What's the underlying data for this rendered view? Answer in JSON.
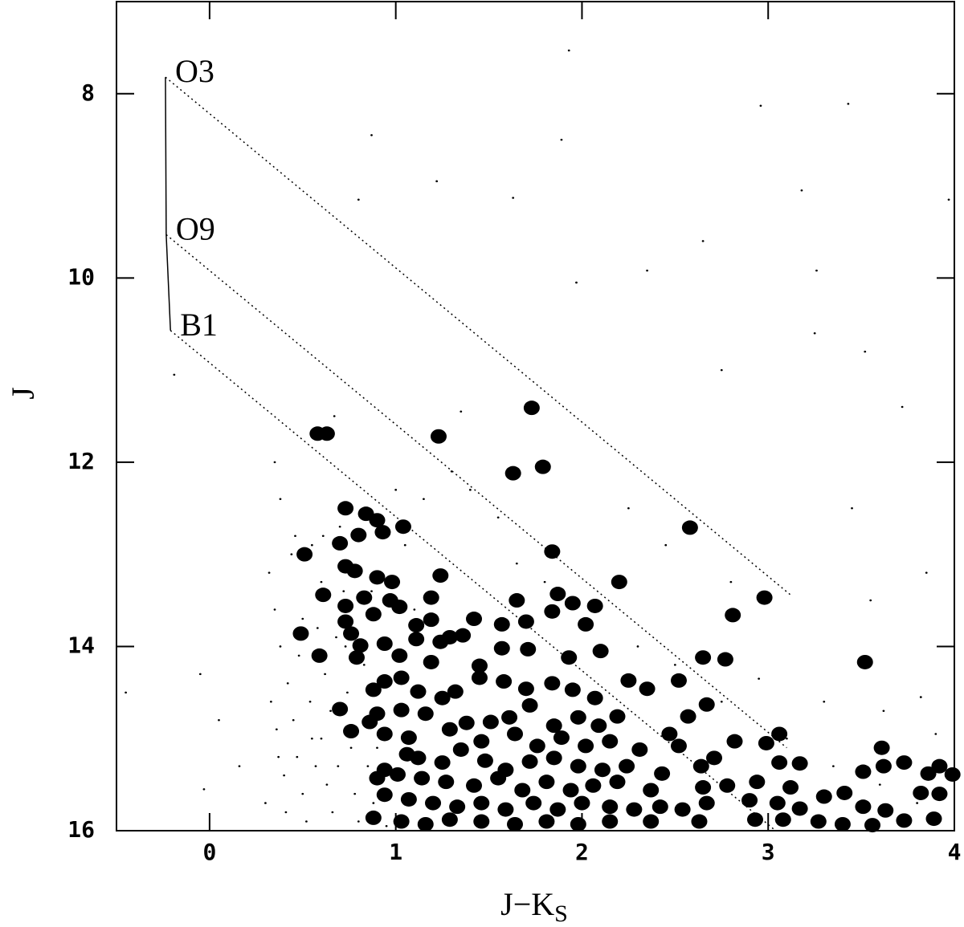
{
  "chart_data": {
    "type": "scatter",
    "xlabel": {
      "text": "J−K",
      "sub": "S"
    },
    "ylabel": "J",
    "xlim": [
      -0.5,
      4
    ],
    "ylim": [
      16,
      7
    ],
    "xticks": [
      0,
      1,
      2,
      3,
      4
    ],
    "yticks": [
      8,
      10,
      12,
      14,
      16
    ],
    "grid": false,
    "main_sequence": {
      "color": "#000000",
      "x": [
        -0.237,
        -0.233,
        -0.21
      ],
      "y": [
        7.82,
        9.53,
        10.57
      ]
    },
    "annotations": [
      {
        "text": "O3",
        "x": [
          -0.237,
          3.12
        ],
        "y": [
          7.82,
          13.44
        ]
      },
      {
        "text": "O9",
        "x": [
          -0.233,
          3.1
        ],
        "y": [
          9.53,
          15.1
        ]
      },
      {
        "text": "B1",
        "x": [
          -0.21,
          3.04
        ],
        "y": [
          10.57,
          16
        ]
      }
    ],
    "series": [
      {
        "color": "#000000",
        "marker": "dot-large",
        "marker_size": 10,
        "x": [
          0.58,
          0.63,
          1.23,
          1.73,
          1.79,
          1.63,
          2.58,
          2.98,
          3.52,
          2.81,
          0.73,
          0.84,
          0.9,
          0.93,
          1.04,
          0.8,
          0.7,
          0.51,
          1.84,
          2.2,
          0.49,
          0.59,
          0.61,
          0.73,
          0.78,
          0.9,
          0.98,
          1.24,
          1.19,
          0.83,
          0.73,
          0.97,
          1.02,
          0.88,
          0.73,
          1.42,
          1.65,
          1.7,
          1.57,
          1.87,
          1.95,
          2.07,
          1.84,
          2.02,
          1.11,
          1.19,
          1.11,
          1.24,
          1.29,
          1.36,
          0.76,
          0.81,
          0.79,
          0.94,
          1.02,
          1.19,
          1.45,
          1.57,
          1.71,
          1.93,
          2.1,
          2.25,
          2.35,
          2.52,
          2.65,
          2.77,
          2.67,
          2.57,
          2.47,
          2.19,
          0.7,
          0.76,
          0.88,
          0.94,
          1.03,
          1.12,
          1.25,
          1.32,
          1.45,
          1.58,
          1.7,
          1.84,
          1.95,
          2.07,
          0.9,
          0.86,
          1.03,
          1.16,
          1.38,
          1.51,
          1.61,
          1.72,
          1.85,
          1.98,
          2.09,
          0.94,
          1.07,
          1.29,
          1.46,
          1.64,
          1.76,
          1.89,
          2.02,
          2.15,
          2.31,
          2.52,
          2.71,
          2.82,
          2.99,
          3.06,
          3.61,
          1.06,
          1.12,
          1.25,
          1.35,
          1.48,
          1.59,
          1.72,
          1.85,
          1.98,
          2.11,
          2.24,
          2.43,
          2.64,
          3.06,
          3.17,
          3.51,
          3.62,
          3.73,
          3.86,
          3.92,
          3.99,
          1.01,
          1.14,
          1.27,
          1.42,
          1.55,
          1.68,
          1.81,
          1.94,
          2.06,
          2.19,
          2.37,
          2.65,
          2.78,
          2.94,
          3.12,
          3.3,
          3.41,
          3.82,
          3.92,
          0.94,
          1.07,
          1.2,
          1.33,
          1.46,
          1.59,
          1.74,
          1.87,
          2.0,
          2.15,
          2.28,
          2.42,
          2.54,
          2.67,
          2.9,
          3.05,
          3.17,
          3.51,
          3.63,
          3.89,
          3.73,
          3.56,
          1.03,
          1.16,
          1.29,
          1.46,
          1.64,
          1.81,
          1.98,
          2.15,
          2.37,
          2.63,
          2.93,
          3.08,
          3.27,
          3.4,
          0.88,
          0.9,
          0.94
        ],
        "y": [
          11.69,
          11.69,
          11.72,
          11.41,
          12.05,
          12.12,
          12.71,
          13.47,
          14.17,
          13.66,
          12.5,
          12.56,
          12.63,
          12.76,
          12.7,
          12.79,
          12.88,
          13.0,
          12.97,
          13.3,
          13.86,
          14.1,
          13.44,
          13.13,
          13.18,
          13.25,
          13.3,
          13.23,
          13.47,
          13.47,
          13.56,
          13.5,
          13.57,
          13.65,
          13.73,
          13.7,
          13.5,
          13.73,
          13.76,
          13.43,
          13.53,
          13.56,
          13.62,
          13.76,
          13.77,
          13.71,
          13.92,
          13.95,
          13.9,
          13.88,
          13.86,
          13.99,
          14.12,
          13.97,
          14.1,
          14.17,
          14.21,
          14.02,
          14.03,
          14.12,
          14.05,
          14.37,
          14.46,
          14.37,
          14.12,
          14.14,
          14.63,
          14.76,
          14.95,
          14.76,
          14.68,
          14.92,
          14.47,
          14.38,
          14.34,
          14.49,
          14.56,
          14.49,
          14.34,
          14.38,
          14.46,
          14.4,
          14.47,
          14.56,
          14.73,
          14.82,
          14.69,
          14.73,
          14.83,
          14.82,
          14.77,
          14.64,
          14.86,
          14.77,
          14.86,
          14.95,
          14.99,
          14.9,
          15.03,
          14.95,
          15.08,
          14.99,
          15.08,
          15.03,
          15.12,
          15.08,
          15.21,
          15.03,
          15.05,
          14.95,
          15.1,
          15.17,
          15.21,
          15.26,
          15.12,
          15.24,
          15.34,
          15.25,
          15.21,
          15.3,
          15.34,
          15.3,
          15.38,
          15.3,
          15.26,
          15.27,
          15.36,
          15.3,
          15.26,
          15.38,
          15.3,
          15.39,
          15.39,
          15.43,
          15.47,
          15.51,
          15.43,
          15.56,
          15.47,
          15.56,
          15.51,
          15.47,
          15.56,
          15.53,
          15.51,
          15.47,
          15.53,
          15.63,
          15.59,
          15.59,
          15.6,
          15.61,
          15.66,
          15.7,
          15.74,
          15.7,
          15.77,
          15.7,
          15.77,
          15.7,
          15.74,
          15.77,
          15.74,
          15.77,
          15.7,
          15.67,
          15.7,
          15.76,
          15.74,
          15.78,
          15.87,
          15.89,
          15.94,
          15.9,
          15.93,
          15.88,
          15.9,
          15.93,
          15.9,
          15.93,
          15.9,
          15.9,
          15.9,
          15.88,
          15.88,
          15.9,
          15.93,
          15.86,
          15.43,
          15.34
        ]
      },
      {
        "color": "#000000",
        "marker": "dot-small",
        "marker_size": 1.4,
        "x": [
          1.93,
          2.96,
          3.43,
          1.89,
          0.87,
          1.22,
          1.63,
          0.8,
          3.18,
          3.97,
          2.65,
          2.35,
          3.26,
          1.97,
          3.25,
          3.52,
          -0.19,
          2.75,
          0.67,
          1.35,
          3.72,
          1.3,
          0.35,
          0.38,
          1.15,
          2.25,
          3.45,
          2.45,
          1.65,
          3.85,
          3.55,
          2.8,
          -0.05,
          -0.45,
          0.05,
          0.16,
          -0.03,
          2.95,
          3.3,
          3.62,
          3.82,
          3.9,
          0.32,
          0.35,
          0.38,
          0.42,
          0.45,
          0.47,
          0.5,
          0.52,
          0.36,
          0.4,
          0.55,
          0.6,
          0.58,
          0.62,
          0.65,
          0.6,
          0.63,
          0.66,
          0.7,
          0.72,
          0.68,
          0.74,
          0.76,
          0.78,
          0.8,
          0.83,
          0.85,
          0.88,
          0.92,
          0.95,
          1.0,
          1.05,
          1.1,
          1.4,
          1.55,
          1.8,
          2.05,
          2.3,
          2.5,
          2.75,
          3.1,
          3.35,
          3.6,
          3.8,
          0.44,
          0.5,
          0.54,
          0.57,
          0.41,
          0.48,
          0.69,
          0.73,
          0.87,
          0.9,
          0.46,
          0.33,
          0.3,
          0.37,
          0.55,
          0.61
        ],
        "y": [
          7.53,
          8.13,
          8.11,
          8.5,
          8.45,
          8.95,
          9.13,
          9.15,
          9.05,
          9.15,
          9.6,
          9.92,
          9.92,
          10.05,
          10.6,
          10.8,
          11.05,
          11.0,
          11.5,
          11.45,
          11.4,
          12.1,
          12.0,
          12.4,
          12.4,
          12.5,
          12.5,
          12.9,
          13.1,
          13.2,
          13.5,
          13.3,
          14.3,
          14.5,
          14.8,
          15.3,
          15.55,
          14.35,
          14.6,
          14.7,
          14.55,
          14.95,
          13.2,
          13.6,
          14.0,
          14.4,
          14.8,
          15.2,
          15.6,
          15.9,
          14.9,
          15.4,
          12.9,
          13.3,
          13.8,
          14.3,
          14.7,
          15.0,
          15.5,
          15.8,
          12.7,
          13.4,
          13.9,
          14.5,
          15.1,
          15.6,
          15.9,
          14.2,
          15.3,
          15.7,
          14.0,
          15.95,
          12.3,
          12.9,
          13.6,
          12.3,
          12.6,
          13.3,
          13.8,
          14.0,
          14.2,
          14.6,
          15.0,
          15.3,
          15.5,
          15.7,
          13.0,
          13.7,
          14.6,
          15.3,
          15.8,
          14.1,
          15.3,
          14.0,
          13.4,
          15.1,
          12.8,
          14.6,
          15.7,
          15.2,
          15.0,
          12.8
        ]
      }
    ]
  }
}
